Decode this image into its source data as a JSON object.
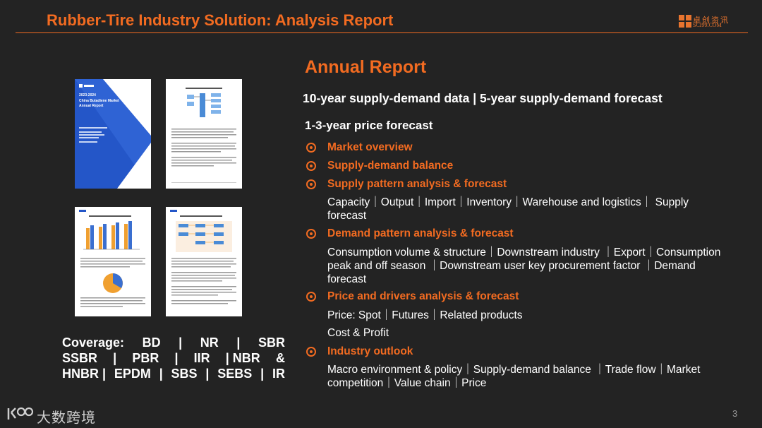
{
  "header": {
    "title": "Rubber-Tire Industry Solution: Analysis Report",
    "logo_cn": "卓创资讯",
    "logo_en": "SCI99.COM"
  },
  "colors": {
    "accent": "#f26b21",
    "background": "#232323",
    "text": "#ffffff"
  },
  "thumbnails": [
    {
      "name": "report-cover",
      "title_lines": [
        "2023-2024",
        "China Butadiene Market",
        "Annual Report"
      ]
    },
    {
      "name": "report-page-flowchart"
    },
    {
      "name": "report-page-chart"
    },
    {
      "name": "report-page-diagram"
    }
  ],
  "coverage": {
    "rows": [
      [
        "Coverage:",
        "BD",
        "|",
        "NR",
        "|",
        "SBR"
      ],
      [
        "SSBR",
        "|",
        "PBR",
        "|",
        "IIR",
        "| NBR",
        "&"
      ],
      [
        "HNBR |",
        "EPDM",
        "|",
        "SBS",
        "|",
        "SEBS",
        "|",
        "IR"
      ]
    ]
  },
  "main": {
    "title": "Annual Report",
    "supply_line": "10-year supply-demand data | 5-year supply-demand forecast",
    "price_line": "1-3-year price forecast",
    "sections": [
      {
        "label": "Market overview",
        "detail_lines": []
      },
      {
        "label": "Supply-demand balance",
        "detail_lines": []
      },
      {
        "label": "Supply pattern analysis & forecast",
        "detail_lines": [
          "Capacity｜Output｜Import｜Inventory｜Warehouse and logistics｜ Supply",
          "forecast"
        ]
      },
      {
        "label": "Demand pattern analysis & forecast",
        "detail_lines": [
          "Consumption volume & structure｜Downstream industry ｜Export｜Consumption",
          "peak and off season ｜Downstream user key procurement factor ｜Demand",
          "forecast"
        ]
      },
      {
        "label": "Price and drivers analysis & forecast",
        "detail_lines": [
          "Price: Spot｜Futures｜Related products",
          "Cost & Profit"
        ]
      },
      {
        "label": "Industry outlook",
        "detail_lines": [
          "Macro environment & policy｜Supply-demand balance ｜Trade flow｜Market",
          "competition｜Value chain｜Price"
        ]
      }
    ]
  },
  "footer": {
    "brand": "大数跨境",
    "page": "3"
  }
}
